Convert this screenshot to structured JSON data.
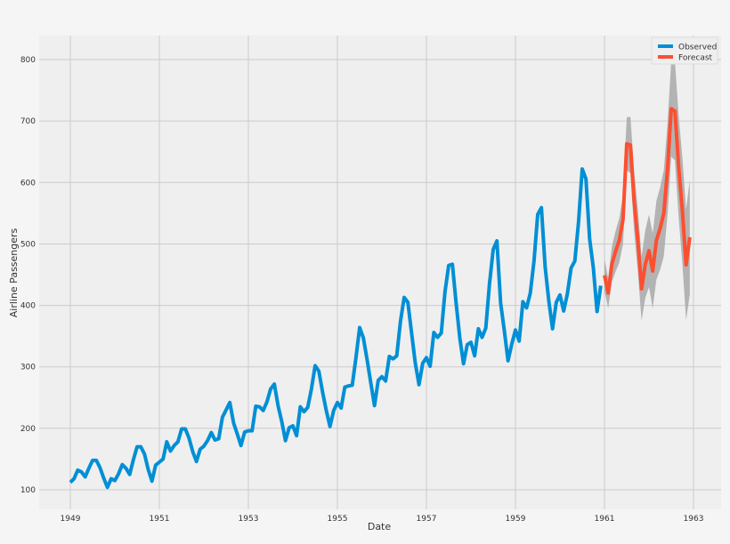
{
  "chart_data": {
    "type": "line",
    "title": "",
    "xlabel": "Date",
    "ylabel": "Airline Passengers",
    "xlim": [
      1948.35,
      1963.6
    ],
    "ylim": [
      70,
      845
    ],
    "x_ticks": [
      "1949",
      "1951",
      "1953",
      "1955",
      "1957",
      "1959",
      "1961",
      "1963"
    ],
    "y_ticks": [
      "100",
      "200",
      "300",
      "400",
      "500",
      "600",
      "700",
      "800"
    ],
    "grid": true,
    "legend_position": "top-right",
    "colors": {
      "observed": "#008fd5",
      "forecast": "#fc4f30",
      "confidence": "#a8a8a8",
      "axes_bg": "#efefef",
      "grid": "#cbcbcb"
    },
    "series": [
      {
        "name": "Observed",
        "start": "1949-01",
        "frequency": "monthly",
        "values": [
          112,
          118,
          132,
          129,
          121,
          135,
          148,
          148,
          136,
          119,
          104,
          118,
          115,
          126,
          141,
          135,
          125,
          149,
          170,
          170,
          158,
          133,
          114,
          140,
          145,
          150,
          178,
          163,
          172,
          178,
          199,
          199,
          184,
          162,
          146,
          166,
          171,
          180,
          193,
          181,
          183,
          218,
          230,
          242,
          209,
          191,
          172,
          194,
          196,
          196,
          236,
          235,
          229,
          243,
          264,
          272,
          237,
          211,
          180,
          201,
          204,
          188,
          235,
          227,
          234,
          264,
          302,
          293,
          259,
          229,
          203,
          229,
          242,
          233,
          267,
          269,
          270,
          315,
          364,
          347,
          312,
          274,
          237,
          278,
          284,
          277,
          317,
          313,
          318,
          374,
          413,
          405,
          355,
          306,
          271,
          306,
          315,
          301,
          356,
          348,
          355,
          422,
          465,
          467,
          404,
          347,
          305,
          336,
          340,
          318,
          362,
          348,
          363,
          435,
          491,
          505,
          404,
          359,
          310,
          337,
          360,
          342,
          406,
          396,
          420,
          472,
          548,
          559,
          463,
          407,
          362,
          405,
          417,
          391,
          419,
          461,
          472,
          535,
          622,
          606,
          508,
          461,
          390,
          432
        ]
      },
      {
        "name": "Forecast",
        "start": "1961-01",
        "frequency": "monthly",
        "values": [
          449,
          420,
          467,
          488,
          506,
          540,
          663,
          661,
          569,
          506,
          427,
          467,
          489,
          456,
          506,
          525,
          550,
          622,
          720,
          716,
          626,
          554,
          466,
          511
        ],
        "lower": [
          423,
          395,
          438,
          455,
          470,
          500,
          620,
          615,
          520,
          455,
          375,
          412,
          430,
          395,
          442,
          458,
          480,
          548,
          642,
          636,
          543,
          468,
          376,
          418
        ],
        "upper": [
          475,
          445,
          496,
          521,
          542,
          580,
          706,
          707,
          618,
          557,
          479,
          522,
          548,
          517,
          570,
          592,
          620,
          696,
          798,
          796,
          709,
          640,
          556,
          604
        ]
      }
    ]
  }
}
